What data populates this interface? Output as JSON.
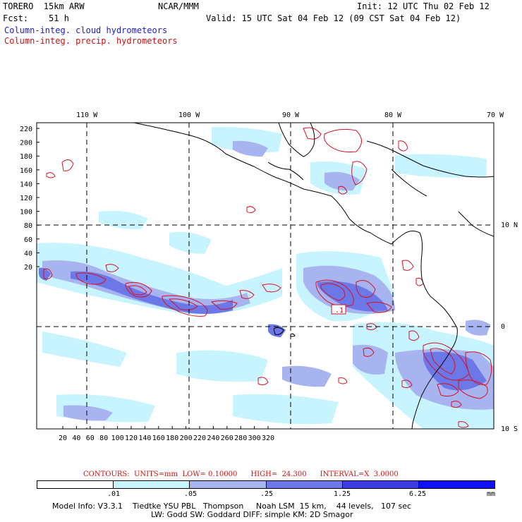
{
  "header": {
    "model": "TORERO  15km ARW",
    "org": "NCAR/MMM",
    "init": "Init: 12 UTC Thu 02 Feb 12",
    "fcst": "Fcst:    51 h",
    "valid": "Valid: 15 UTC Sat 04 Feb 12 (09 CST Sat 04 Feb 12)",
    "field_cloud": "Column-integ. cloud hydrometeors",
    "field_precip": "Column-integ. precip. hydrometeors"
  },
  "map": {
    "lon_labels": [
      "110 W",
      "100 W",
      "90 W",
      "80 W",
      "70 W"
    ],
    "lat_labels": [
      "10 N",
      "0",
      "10 S"
    ],
    "y_ticks": [
      "220",
      "200",
      "180",
      "160",
      "140",
      "120",
      "100",
      "80",
      "60",
      "40",
      "20"
    ],
    "x_ticks": [
      "20",
      "40",
      "60",
      "80",
      "100",
      "120",
      "140",
      "160",
      "180",
      "200",
      "220",
      "240",
      "260",
      "280",
      "300",
      "320"
    ],
    "annotation": ".1",
    "colors": {
      "shade1": "#c8f4ff",
      "shade2": "#a8b4f0",
      "shade3": "#6c78e8",
      "shade4": "#3c3ce0",
      "contour": "#d81020"
    }
  },
  "contours": {
    "label": "CONTOURS:  UNITS=mm  LOW= 0.10000      HIGH=  24.300      INTERVAL=X  3.0000"
  },
  "colorbar": {
    "labels": [
      ".01",
      ".05",
      ".25",
      "1.25",
      "6.25"
    ],
    "unit": "mm",
    "colors": [
      "#ffffff",
      "#c8f4ff",
      "#a8b4f0",
      "#6c78e8",
      "#3c3ce0",
      "#1010f0"
    ]
  },
  "footer": {
    "line1": "Model Info: V3.3.1    Tiedtke YSU PBL   Thompson     Noah LSM  15 km,    44 levels,   107 sec",
    "line2": "LW: Godd SW: Goddard DIFF: simple KM: 2D Smagor"
  }
}
